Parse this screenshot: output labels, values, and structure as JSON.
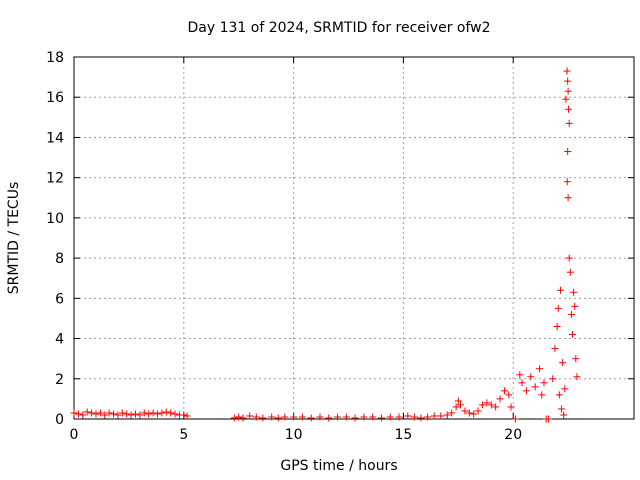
{
  "chart_data": {
    "type": "scatter",
    "title": "Day 131 of 2024, SRMTID for receiver ofw2",
    "xlabel": "GPS time / hours",
    "ylabel": "SRMTID / TECUs",
    "xlim": [
      0,
      25.5
    ],
    "ylim": [
      0,
      18
    ],
    "xticks": [
      0,
      5,
      10,
      15,
      20
    ],
    "yticks": [
      0,
      2,
      4,
      6,
      8,
      10,
      12,
      14,
      16,
      18
    ],
    "grid": true,
    "legend": "none",
    "marker": "plus",
    "color": "#ff0000",
    "series": [
      {
        "points": [
          [
            0.0,
            0.3
          ],
          [
            0.2,
            0.25
          ],
          [
            0.4,
            0.2
          ],
          [
            0.6,
            0.35
          ],
          [
            0.8,
            0.3
          ],
          [
            1.0,
            0.25
          ],
          [
            1.2,
            0.3
          ],
          [
            1.4,
            0.2
          ],
          [
            1.6,
            0.3
          ],
          [
            1.8,
            0.25
          ],
          [
            2.0,
            0.2
          ],
          [
            2.2,
            0.3
          ],
          [
            2.4,
            0.25
          ],
          [
            2.6,
            0.2
          ],
          [
            2.8,
            0.25
          ],
          [
            3.0,
            0.2
          ],
          [
            3.2,
            0.3
          ],
          [
            3.4,
            0.25
          ],
          [
            3.6,
            0.3
          ],
          [
            3.8,
            0.25
          ],
          [
            4.0,
            0.3
          ],
          [
            4.2,
            0.35
          ],
          [
            4.4,
            0.3
          ],
          [
            4.6,
            0.25
          ],
          [
            4.8,
            0.2
          ],
          [
            5.0,
            0.2
          ],
          [
            5.15,
            0.15
          ],
          [
            7.3,
            0.05
          ],
          [
            7.5,
            0.1
          ],
          [
            7.7,
            0.05
          ],
          [
            8.0,
            0.15
          ],
          [
            8.3,
            0.1
          ],
          [
            8.6,
            0.05
          ],
          [
            9.0,
            0.1
          ],
          [
            9.3,
            0.05
          ],
          [
            9.6,
            0.1
          ],
          [
            10.0,
            0.1
          ],
          [
            10.4,
            0.1
          ],
          [
            10.8,
            0.05
          ],
          [
            11.2,
            0.1
          ],
          [
            11.6,
            0.05
          ],
          [
            12.0,
            0.1
          ],
          [
            12.4,
            0.1
          ],
          [
            12.8,
            0.05
          ],
          [
            13.2,
            0.1
          ],
          [
            13.6,
            0.1
          ],
          [
            14.0,
            0.05
          ],
          [
            14.4,
            0.1
          ],
          [
            14.8,
            0.1
          ],
          [
            15.2,
            0.15
          ],
          [
            15.5,
            0.1
          ],
          [
            15.8,
            0.05
          ],
          [
            16.1,
            0.1
          ],
          [
            16.4,
            0.15
          ],
          [
            16.7,
            0.15
          ],
          [
            17.0,
            0.2
          ],
          [
            17.2,
            0.3
          ],
          [
            17.4,
            0.6
          ],
          [
            17.5,
            0.9
          ],
          [
            17.6,
            0.7
          ],
          [
            17.8,
            0.4
          ],
          [
            18.0,
            0.3
          ],
          [
            18.2,
            0.25
          ],
          [
            18.4,
            0.4
          ],
          [
            18.6,
            0.7
          ],
          [
            18.8,
            0.8
          ],
          [
            19.0,
            0.7
          ],
          [
            19.2,
            0.6
          ],
          [
            19.4,
            1.0
          ],
          [
            19.6,
            1.4
          ],
          [
            19.8,
            1.2
          ],
          [
            19.9,
            0.6
          ],
          [
            20.1,
            0.0
          ],
          [
            20.3,
            2.2
          ],
          [
            20.4,
            1.8
          ],
          [
            20.6,
            1.4
          ],
          [
            20.8,
            2.1
          ],
          [
            21.0,
            1.6
          ],
          [
            21.2,
            2.5
          ],
          [
            21.3,
            1.2
          ],
          [
            21.4,
            1.8
          ],
          [
            21.5,
            0.0
          ],
          [
            21.6,
            0.0
          ],
          [
            21.8,
            2.0
          ],
          [
            21.9,
            3.5
          ],
          [
            22.0,
            4.6
          ],
          [
            22.05,
            5.5
          ],
          [
            22.1,
            1.2
          ],
          [
            22.15,
            6.4
          ],
          [
            22.2,
            0.5
          ],
          [
            22.25,
            2.8
          ],
          [
            22.3,
            0.2
          ],
          [
            22.35,
            1.5
          ],
          [
            22.4,
            15.9
          ],
          [
            22.45,
            17.3
          ],
          [
            22.48,
            16.8
          ],
          [
            22.5,
            16.3
          ],
          [
            22.52,
            15.4
          ],
          [
            22.55,
            14.7
          ],
          [
            22.48,
            13.3
          ],
          [
            22.46,
            11.8
          ],
          [
            22.5,
            11.0
          ],
          [
            22.55,
            8.0
          ],
          [
            22.6,
            7.3
          ],
          [
            22.65,
            5.2
          ],
          [
            22.7,
            4.2
          ],
          [
            22.75,
            6.3
          ],
          [
            22.8,
            5.6
          ],
          [
            22.85,
            3.0
          ],
          [
            22.9,
            2.1
          ]
        ]
      }
    ]
  }
}
